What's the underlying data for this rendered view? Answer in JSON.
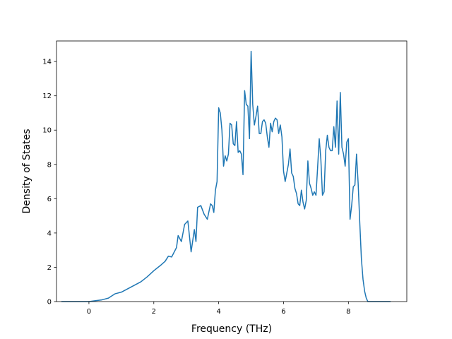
{
  "chart_data": {
    "type": "line",
    "title": "",
    "xlabel": "Frequency (THz)",
    "ylabel": "Density of States",
    "xlim": [
      -1.0,
      9.8
    ],
    "ylim": [
      0,
      15.2
    ],
    "xticks": [
      0,
      2,
      4,
      6,
      8
    ],
    "yticks": [
      0,
      2,
      4,
      6,
      8,
      10,
      12,
      14
    ],
    "grid": false,
    "legend": "none",
    "colors": {
      "line": "#1f77b4",
      "axes": "#000000",
      "background": "#ffffff"
    },
    "series": [
      {
        "x": [
          -0.85,
          -0.5,
          0.0,
          0.2,
          0.4,
          0.6,
          0.8,
          1.0,
          1.2,
          1.4,
          1.6,
          1.8,
          2.0,
          2.2,
          2.35,
          2.45,
          2.55,
          2.7,
          2.75,
          2.85,
          2.95,
          3.05,
          3.15,
          3.25,
          3.3,
          3.35,
          3.45,
          3.55,
          3.65,
          3.75,
          3.8,
          3.85,
          3.9,
          3.95,
          4.0,
          4.05,
          4.1,
          4.15,
          4.2,
          4.25,
          4.3,
          4.35,
          4.4,
          4.45,
          4.5,
          4.55,
          4.6,
          4.65,
          4.7,
          4.75,
          4.8,
          4.85,
          4.9,
          4.95,
          5.0,
          5.05,
          5.1,
          5.15,
          5.2,
          5.25,
          5.3,
          5.35,
          5.4,
          5.45,
          5.5,
          5.55,
          5.6,
          5.65,
          5.7,
          5.75,
          5.8,
          5.85,
          5.9,
          5.95,
          6.0,
          6.05,
          6.1,
          6.15,
          6.2,
          6.25,
          6.3,
          6.35,
          6.4,
          6.45,
          6.5,
          6.55,
          6.6,
          6.65,
          6.7,
          6.75,
          6.8,
          6.85,
          6.9,
          6.95,
          7.0,
          7.05,
          7.1,
          7.15,
          7.2,
          7.25,
          7.3,
          7.35,
          7.4,
          7.45,
          7.5,
          7.55,
          7.6,
          7.65,
          7.7,
          7.75,
          7.8,
          7.85,
          7.9,
          7.95,
          8.0,
          8.05,
          8.1,
          8.15,
          8.2,
          8.25,
          8.3,
          8.35,
          8.4,
          8.45,
          8.5,
          8.55,
          8.6,
          8.65,
          8.8,
          9.0,
          9.3
        ],
        "y": [
          0.0,
          0.0,
          0.0,
          0.05,
          0.1,
          0.2,
          0.45,
          0.55,
          0.75,
          0.95,
          1.15,
          1.45,
          1.8,
          2.1,
          2.35,
          2.65,
          2.6,
          3.15,
          3.85,
          3.5,
          4.5,
          4.7,
          2.9,
          4.2,
          3.5,
          5.5,
          5.6,
          5.1,
          4.8,
          5.7,
          5.6,
          5.2,
          6.5,
          7.0,
          11.3,
          11.0,
          10.0,
          7.9,
          8.5,
          8.2,
          8.6,
          10.4,
          10.3,
          9.2,
          9.1,
          10.5,
          8.7,
          8.8,
          8.6,
          7.4,
          12.3,
          11.5,
          11.4,
          9.5,
          14.6,
          11.5,
          10.3,
          10.8,
          11.4,
          9.8,
          9.8,
          10.5,
          10.6,
          10.4,
          9.6,
          9.0,
          10.4,
          9.9,
          10.5,
          10.7,
          10.6,
          9.8,
          10.3,
          9.6,
          7.6,
          7.0,
          7.5,
          8.0,
          8.9,
          7.5,
          7.3,
          6.6,
          6.3,
          5.7,
          5.6,
          6.5,
          5.8,
          5.4,
          5.9,
          8.2,
          6.9,
          6.6,
          6.2,
          6.4,
          6.2,
          7.8,
          9.5,
          8.3,
          6.2,
          6.4,
          8.8,
          9.7,
          9.0,
          8.8,
          8.8,
          10.2,
          9.0,
          11.7,
          8.6,
          12.2,
          9.0,
          8.6,
          7.9,
          9.3,
          9.5,
          4.8,
          5.6,
          6.7,
          6.8,
          8.6,
          6.9,
          4.6,
          2.5,
          1.3,
          0.6,
          0.2,
          0.0,
          0.0,
          0.0,
          0.0,
          0.0
        ]
      }
    ]
  }
}
